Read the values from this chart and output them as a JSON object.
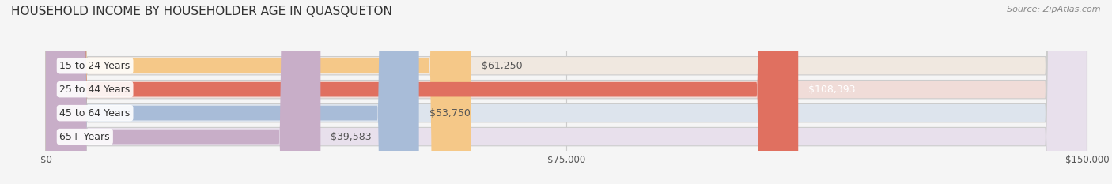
{
  "title": "HOUSEHOLD INCOME BY HOUSEHOLDER AGE IN QUASQUETON",
  "source": "Source: ZipAtlas.com",
  "categories": [
    "15 to 24 Years",
    "25 to 44 Years",
    "45 to 64 Years",
    "65+ Years"
  ],
  "values": [
    61250,
    108393,
    53750,
    39583
  ],
  "bar_colors": [
    "#f5c888",
    "#e07060",
    "#a8bcd8",
    "#c8aec8"
  ],
  "bar_bg_colors": [
    "#f0e8e0",
    "#f0dcd8",
    "#dde4ed",
    "#e8e0ec"
  ],
  "label_colors": [
    "#555555",
    "#ffffff",
    "#555555",
    "#555555"
  ],
  "value_labels": [
    "$61,250",
    "$108,393",
    "$53,750",
    "$39,583"
  ],
  "x_ticks": [
    0,
    75000,
    150000
  ],
  "x_tick_labels": [
    "$0",
    "$75,000",
    "$150,000"
  ],
  "xlim": [
    0,
    150000
  ],
  "title_fontsize": 11,
  "source_fontsize": 8,
  "label_fontsize": 9,
  "value_fontsize": 9,
  "background_color": "#f5f5f5"
}
